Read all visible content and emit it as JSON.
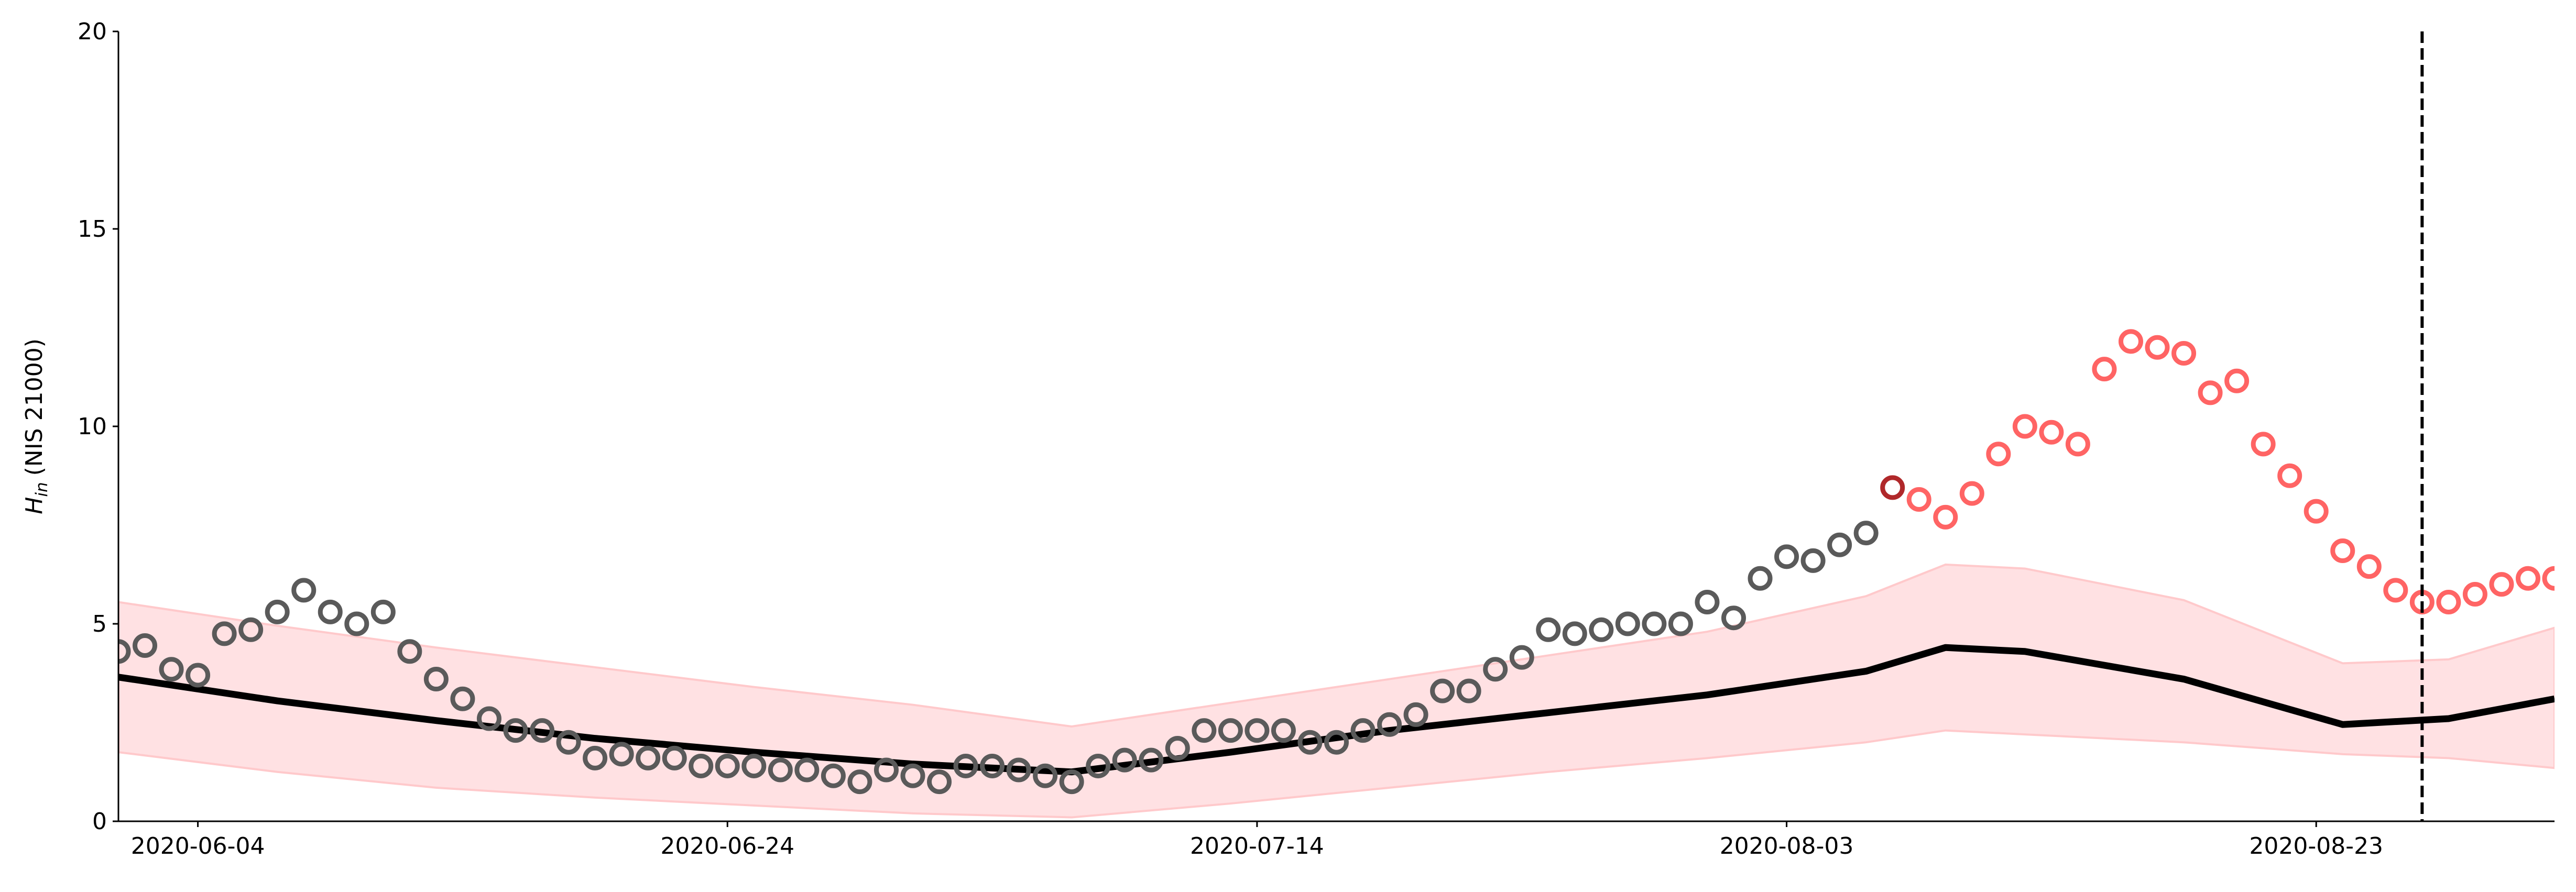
{
  "chart_data": {
    "type": "scatter",
    "ylabel_symbol": "H",
    "ylabel_subscript": "in",
    "ylabel_unit": "(NIS 21000)",
    "xlim": [
      "2020-06-01",
      "2020-09-01"
    ],
    "ylim": [
      0,
      20
    ],
    "xticks": [
      "2020-06-04",
      "2020-06-24",
      "2020-07-14",
      "2020-08-03",
      "2020-08-23"
    ],
    "yticks": [
      0,
      5,
      10,
      15,
      20
    ],
    "vline": {
      "x": "2020-08-27",
      "color": "#000000"
    },
    "series": [
      {
        "color": "#5a5a5a",
        "x": [
          "2020-06-01",
          "2020-06-02",
          "2020-06-03",
          "2020-06-04",
          "2020-06-05",
          "2020-06-06",
          "2020-06-07",
          "2020-06-08",
          "2020-06-09",
          "2020-06-10",
          "2020-06-11",
          "2020-06-12",
          "2020-06-13",
          "2020-06-14",
          "2020-06-15",
          "2020-06-16",
          "2020-06-17",
          "2020-06-18",
          "2020-06-19",
          "2020-06-20",
          "2020-06-21",
          "2020-06-22",
          "2020-06-23",
          "2020-06-24",
          "2020-06-25",
          "2020-06-26",
          "2020-06-27",
          "2020-06-28",
          "2020-06-29",
          "2020-06-30",
          "2020-07-01",
          "2020-07-02",
          "2020-07-03",
          "2020-07-04",
          "2020-07-05",
          "2020-07-06",
          "2020-07-07",
          "2020-07-08",
          "2020-07-09",
          "2020-07-10",
          "2020-07-11",
          "2020-07-12",
          "2020-07-13",
          "2020-07-14",
          "2020-07-15",
          "2020-07-16",
          "2020-07-17",
          "2020-07-18",
          "2020-07-19",
          "2020-07-20",
          "2020-07-21",
          "2020-07-22",
          "2020-07-23",
          "2020-07-24",
          "2020-07-25",
          "2020-07-26",
          "2020-07-27",
          "2020-07-28",
          "2020-07-29",
          "2020-07-30",
          "2020-07-31",
          "2020-08-01",
          "2020-08-02",
          "2020-08-03",
          "2020-08-04",
          "2020-08-05",
          "2020-08-06"
        ],
        "values": [
          4.3,
          4.45,
          3.85,
          3.7,
          4.75,
          4.85,
          5.3,
          5.85,
          5.3,
          5.0,
          5.3,
          4.3,
          3.6,
          3.1,
          2.6,
          2.3,
          2.3,
          2.0,
          1.6,
          1.7,
          1.6,
          1.6,
          1.4,
          1.4,
          1.4,
          1.3,
          1.3,
          1.15,
          1.0,
          1.3,
          1.15,
          1.0,
          1.4,
          1.4,
          1.3,
          1.15,
          1.0,
          1.4,
          1.55,
          1.55,
          1.85,
          2.3,
          2.3,
          2.3,
          2.3,
          2.0,
          2.0,
          2.3,
          2.45,
          2.7,
          3.3,
          3.3,
          3.85,
          4.15,
          4.85,
          4.75,
          4.85,
          5.0,
          5.0,
          5.0,
          5.55,
          5.15,
          6.15,
          6.7,
          6.6,
          7.0,
          7.3
        ]
      },
      {
        "color": "#b0282a",
        "x": [
          "2020-08-07"
        ],
        "values": [
          8.45
        ]
      },
      {
        "color": "#ff6464",
        "x": [
          "2020-08-08",
          "2020-08-09",
          "2020-08-10",
          "2020-08-11",
          "2020-08-12",
          "2020-08-13",
          "2020-08-14",
          "2020-08-15",
          "2020-08-16",
          "2020-08-17",
          "2020-08-18",
          "2020-08-19",
          "2020-08-20",
          "2020-08-21",
          "2020-08-22",
          "2020-08-23",
          "2020-08-24",
          "2020-08-25",
          "2020-08-26",
          "2020-08-27",
          "2020-08-28",
          "2020-08-29",
          "2020-08-30",
          "2020-08-31",
          "2020-09-01"
        ],
        "values": [
          8.15,
          7.7,
          8.3,
          9.3,
          10.0,
          9.85,
          9.55,
          11.45,
          12.15,
          12.0,
          11.85,
          10.85,
          11.15,
          9.55,
          8.75,
          7.85,
          6.85,
          6.45,
          5.85,
          5.55,
          5.55,
          5.75,
          6.0,
          6.15,
          6.15
        ]
      }
    ],
    "fit": {
      "color": "#000000",
      "band_color": "#ffe1e3",
      "band_edge_color": "#ffc9cb",
      "x": [
        "2020-06-01",
        "2020-06-07",
        "2020-06-13",
        "2020-06-19",
        "2020-06-25",
        "2020-07-01",
        "2020-07-07",
        "2020-07-13",
        "2020-07-19",
        "2020-07-25",
        "2020-07-31",
        "2020-08-06",
        "2020-08-09",
        "2020-08-12",
        "2020-08-18",
        "2020-08-24",
        "2020-08-28",
        "2020-09-01"
      ],
      "values": [
        3.65,
        3.05,
        2.55,
        2.1,
        1.75,
        1.45,
        1.25,
        1.75,
        2.3,
        2.75,
        3.2,
        3.8,
        4.4,
        4.3,
        3.6,
        2.45,
        2.6,
        3.1
      ],
      "lower": [
        1.75,
        1.25,
        0.85,
        0.6,
        0.4,
        0.2,
        0.1,
        0.45,
        0.85,
        1.25,
        1.6,
        2.0,
        2.3,
        2.2,
        2.0,
        1.7,
        1.6,
        1.35
      ],
      "upper": [
        5.55,
        4.95,
        4.4,
        3.9,
        3.4,
        2.95,
        2.4,
        3.0,
        3.6,
        4.2,
        4.8,
        5.7,
        6.5,
        6.4,
        5.6,
        4.0,
        4.1,
        4.9
      ]
    }
  }
}
